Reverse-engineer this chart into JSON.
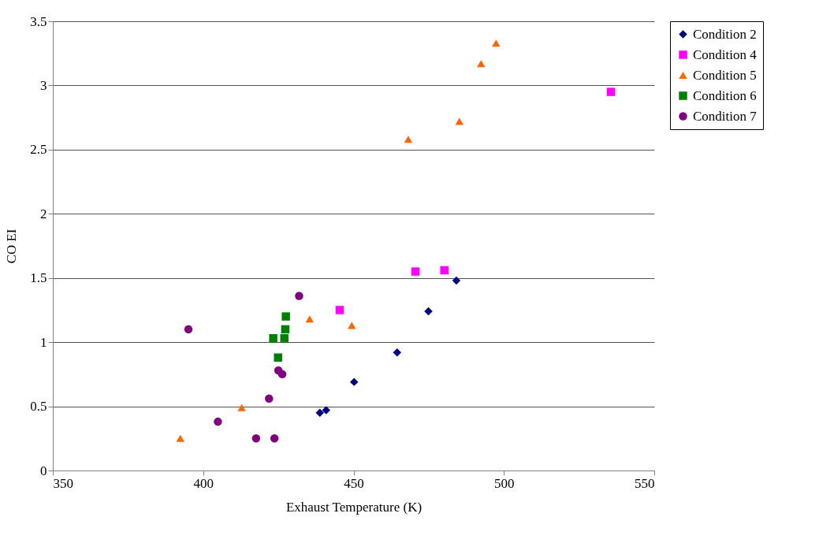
{
  "chart_data": {
    "type": "scatter",
    "xlabel": "Exhaust Temperature (K)",
    "ylabel": "CO EI",
    "xlim": [
      350,
      550
    ],
    "xticks": [
      350,
      400,
      450,
      500,
      550
    ],
    "ylim": [
      0,
      3.5
    ],
    "yticks": [
      0,
      0.5,
      1,
      1.5,
      2,
      2.5,
      3,
      3.5
    ],
    "grid": "y",
    "legend": "right",
    "series": [
      {
        "name": "Condition 2",
        "color": "#000080",
        "marker": "diamond",
        "x": [
          438.8,
          440.9,
          450.2,
          464.5,
          474.9,
          484.2
        ],
        "values": [
          0.45,
          0.47,
          0.69,
          0.92,
          1.24,
          1.48
        ]
      },
      {
        "name": "Condition 4",
        "color": "#ff00ff",
        "marker": "square",
        "x": [
          445.4,
          470.6,
          480.2,
          535.6
        ],
        "values": [
          1.25,
          1.55,
          1.56,
          2.95
        ]
      },
      {
        "name": "Condition 5",
        "color": "#ff6600",
        "marker": "triangle",
        "x": [
          392.4,
          412.8,
          435.4,
          449.4,
          468.2,
          485.2,
          492.4,
          497.4
        ],
        "values": [
          0.25,
          0.49,
          1.18,
          1.13,
          2.58,
          2.72,
          3.17,
          3.33
        ]
      },
      {
        "name": "Condition 6",
        "color": "#008000",
        "marker": "square",
        "x": [
          423.3,
          424.9,
          427.0,
          427.3,
          427.5
        ],
        "values": [
          1.03,
          0.88,
          1.03,
          1.1,
          1.2
        ]
      },
      {
        "name": "Condition 7",
        "color": "#800080",
        "marker": "circle",
        "x": [
          395.1,
          404.9,
          417.6,
          421.9,
          423.7,
          425.0,
          426.3,
          431.9
        ],
        "values": [
          1.1,
          0.38,
          0.25,
          0.56,
          0.25,
          0.78,
          0.75,
          1.36
        ]
      }
    ]
  }
}
